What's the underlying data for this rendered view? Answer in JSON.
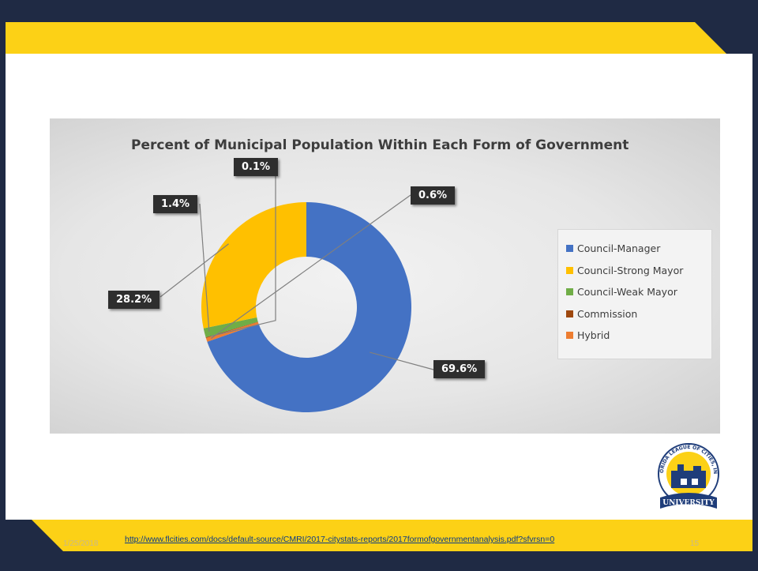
{
  "slide": {
    "date": "1/25/2018",
    "url": "http://www.flcities.com/docs/default-source/CMRI/2017-citystats-reports/2017formofgovernmentanalysis.pdf?sfvrsn=0",
    "page_number": "15",
    "logo": {
      "text_arc": "FLORIDA LEAGUE OF CITIES, INC.",
      "banner": "UNIVERSITY"
    }
  },
  "colors": {
    "navy": "#1f2a44",
    "yellow": "#fcd116"
  },
  "chart_data": {
    "type": "pie",
    "variant": "donut",
    "title": "Percent of Municipal Population Within Each Form of Government",
    "labels": [
      "Council-Manager",
      "Council-Strong Mayor",
      "Council-Weak Mayor",
      "Commission",
      "Hybrid"
    ],
    "values": [
      69.6,
      28.2,
      1.4,
      0.1,
      0.6
    ],
    "value_labels": [
      "69.6%",
      "28.2%",
      "1.4%",
      "0.1%",
      "0.6%"
    ],
    "colors": [
      "#4472c4",
      "#ffc000",
      "#70ad47",
      "#9e480e",
      "#ed7d31"
    ],
    "legend_position": "right"
  }
}
